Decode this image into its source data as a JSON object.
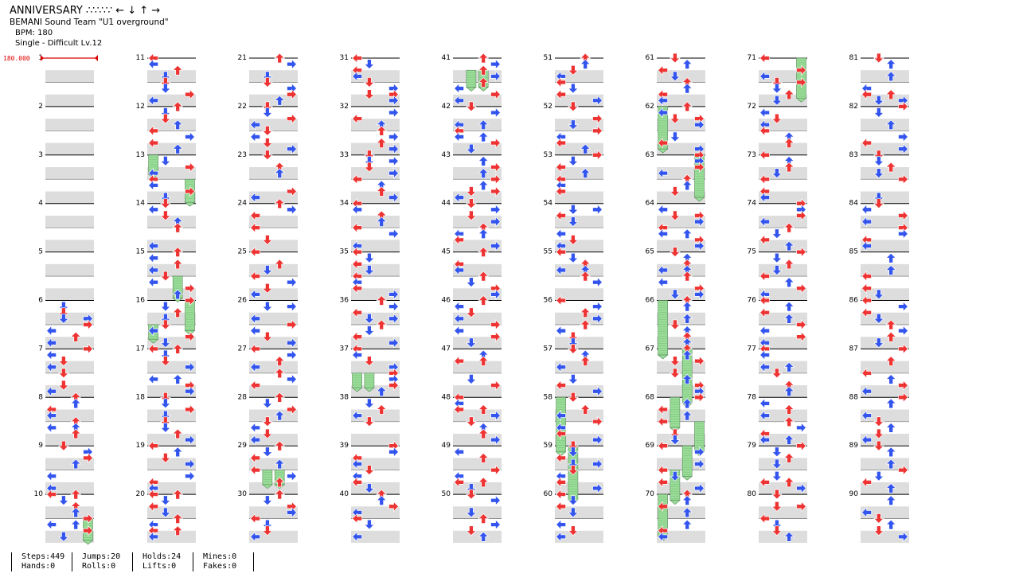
{
  "song": {
    "title": "ANNIVERSARY ∴∵∴∵ ← ↓ ↑ →",
    "artist": "BEMANI Sound Team \"U1 overground\"",
    "bpm": "BPM: 180",
    "difficulty": "Single - Difficult Lv.12"
  },
  "chart": {
    "bpm_marker": "180.000",
    "measure_count": 90,
    "colors": {
      "quarter": "#ee3333",
      "eighth": "#3355ee",
      "hold": "#99dd99",
      "band": "#dddddd",
      "bpm": "#dd0000"
    }
  },
  "stats": [
    {
      "top": "Steps:449",
      "bottom": "Hands:0"
    },
    {
      "top": "Jumps:20",
      "bottom": "Rolls:0"
    },
    {
      "top": "Holds:24",
      "bottom": "Lifts:0"
    },
    {
      "top": "Mines:0",
      "bottom": "Fakes:0"
    }
  ]
}
